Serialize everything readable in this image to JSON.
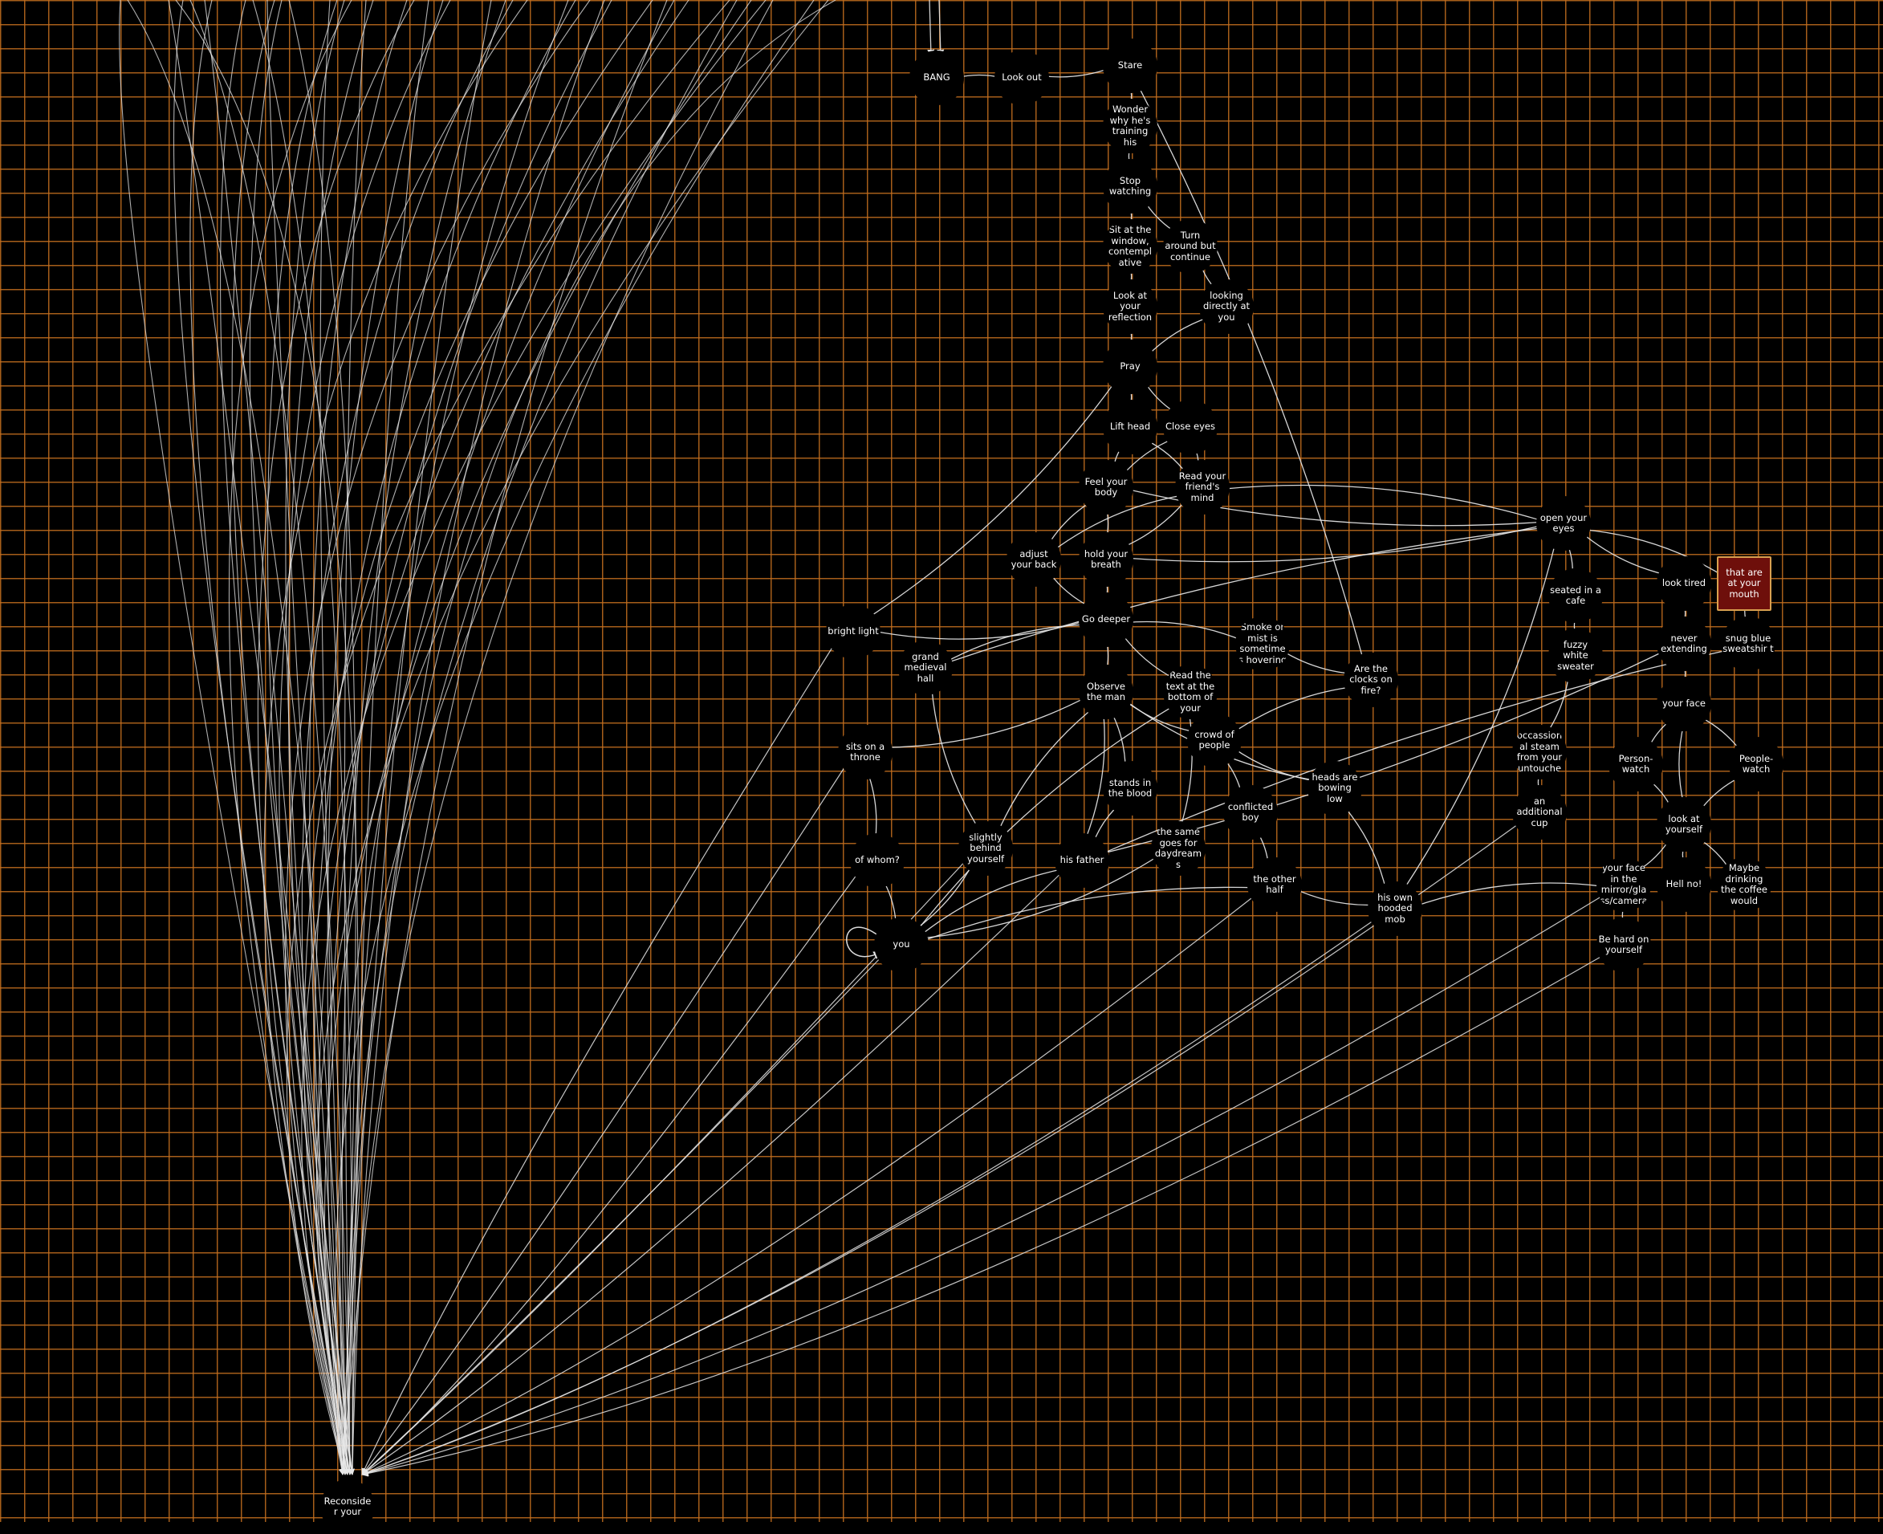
{
  "colors": {
    "background": "#000000",
    "grid": "#c36e1e",
    "edge": "#e8e8e8",
    "current_node": "#6e0f0b"
  },
  "graph": {
    "nodes": [
      {
        "id": "bang",
        "label": "BANG"
      },
      {
        "id": "lookout",
        "label": "Look out"
      },
      {
        "id": "stare",
        "label": "Stare"
      },
      {
        "id": "wonder",
        "label": "Wonder why he's training his"
      },
      {
        "id": "stopwatching",
        "label": "Stop watching"
      },
      {
        "id": "sitwindow",
        "label": "Sit at the window, contempl ative"
      },
      {
        "id": "turnaround",
        "label": "Turn around but continue"
      },
      {
        "id": "lookreflection",
        "label": "Look at your reflection"
      },
      {
        "id": "lookingdirectly",
        "label": "looking directly at you"
      },
      {
        "id": "pray",
        "label": "Pray"
      },
      {
        "id": "lifthead",
        "label": "Lift head"
      },
      {
        "id": "closeeyes",
        "label": "Close eyes"
      },
      {
        "id": "feelbody",
        "label": "Feel your body"
      },
      {
        "id": "readmind",
        "label": "Read your friend's mind"
      },
      {
        "id": "adjustback",
        "label": "adjust your back"
      },
      {
        "id": "holdbreath",
        "label": "hold your breath"
      },
      {
        "id": "godeeper",
        "label": "Go deeper"
      },
      {
        "id": "brightlight",
        "label": "bright light"
      },
      {
        "id": "grandhall",
        "label": "grand medieval hall"
      },
      {
        "id": "observeman",
        "label": "Observe the man"
      },
      {
        "id": "readtext",
        "label": "Read the text at the bottom of your"
      },
      {
        "id": "smoke",
        "label": "Smoke or mist is sometime s hovering"
      },
      {
        "id": "clocks",
        "label": "Are the clocks on fire?"
      },
      {
        "id": "throne",
        "label": "sits on a throne"
      },
      {
        "id": "crowd",
        "label": "crowd of people"
      },
      {
        "id": "standsblood",
        "label": "stands in the blood"
      },
      {
        "id": "headsbowing",
        "label": "heads are bowing low"
      },
      {
        "id": "conflicted",
        "label": "conflicted boy"
      },
      {
        "id": "ofwhom",
        "label": "of whom?"
      },
      {
        "id": "slightly",
        "label": "slightly behind yourself"
      },
      {
        "id": "hisfather",
        "label": "his father"
      },
      {
        "id": "samegoes",
        "label": "the same goes for daydream s"
      },
      {
        "id": "otherhalf",
        "label": "the other half"
      },
      {
        "id": "hoodedmob",
        "label": "his own hooded mob"
      },
      {
        "id": "you",
        "label": "you"
      },
      {
        "id": "openeyes",
        "label": "open your eyes"
      },
      {
        "id": "seatedcafe",
        "label": "seated in a cafe"
      },
      {
        "id": "fuzzy",
        "label": "fuzzy white sweater"
      },
      {
        "id": "steam",
        "label": "occassion al steam from your untouche"
      },
      {
        "id": "additionalcup",
        "label": "an additional cup"
      },
      {
        "id": "looktired",
        "label": "look tired"
      },
      {
        "id": "atmouth",
        "label": "that are at your mouth"
      },
      {
        "id": "neverext",
        "label": "never extending"
      },
      {
        "id": "snugblue",
        "label": "snug blue sweatshir t"
      },
      {
        "id": "yourface",
        "label": "your face"
      },
      {
        "id": "personwatch",
        "label": "Person-watch"
      },
      {
        "id": "peoplewatch",
        "label": "People-watch"
      },
      {
        "id": "lookyourself",
        "label": "look at yourself"
      },
      {
        "id": "facemirror",
        "label": "your face in the mirror/gla ss/camera"
      },
      {
        "id": "hellno",
        "label": "Hell no!"
      },
      {
        "id": "maybecoffee",
        "label": "Maybe drinking the coffee would"
      },
      {
        "id": "behard",
        "label": "Be hard on yourself"
      },
      {
        "id": "reconsider",
        "label": "Reconside r your"
      }
    ],
    "current_node": "atmouth"
  }
}
